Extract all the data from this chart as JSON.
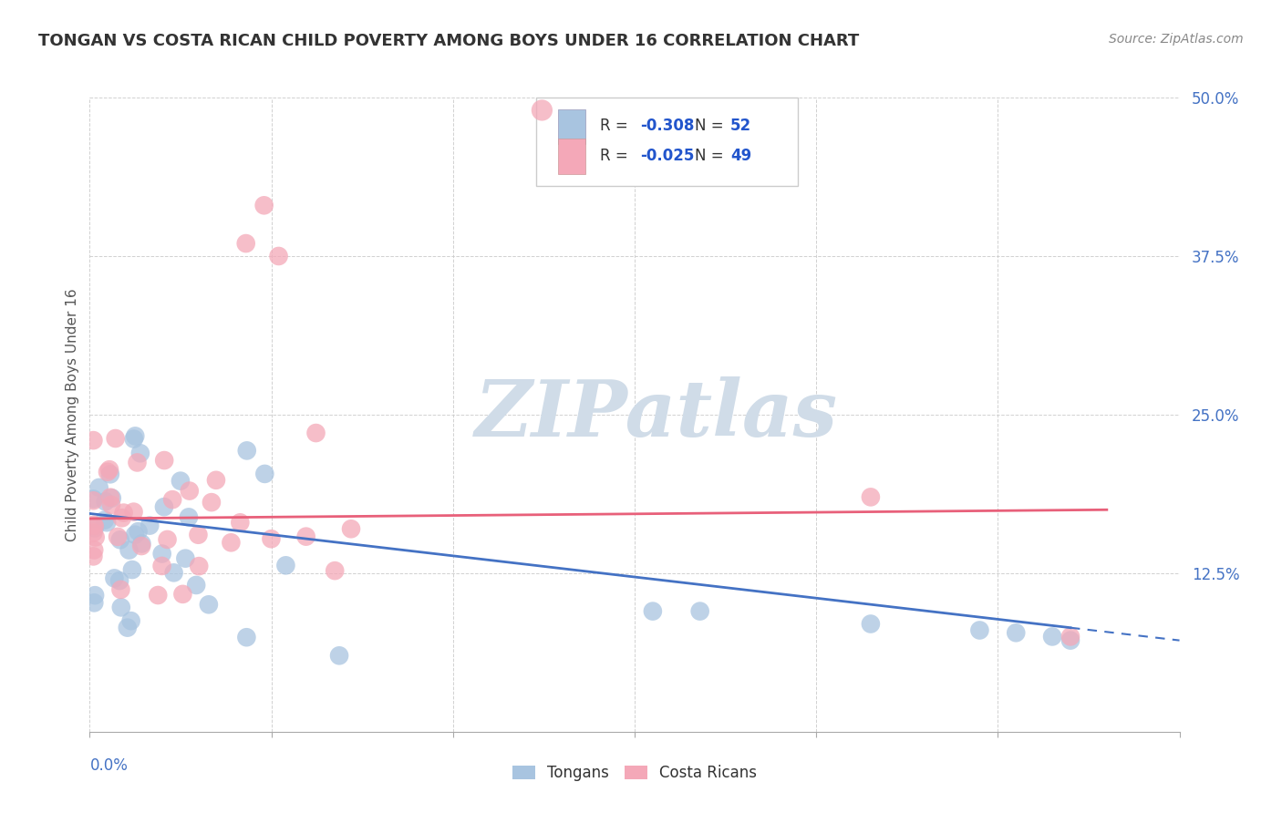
{
  "title": "TONGAN VS COSTA RICAN CHILD POVERTY AMONG BOYS UNDER 16 CORRELATION CHART",
  "source": "Source: ZipAtlas.com",
  "xlim": [
    0.0,
    0.3
  ],
  "ylim": [
    0.0,
    0.5
  ],
  "tongan_R": -0.308,
  "tongan_N": 52,
  "costarican_R": -0.025,
  "costarican_N": 49,
  "tongan_color": "#a8c4e0",
  "costarican_color": "#f4a8b8",
  "tongan_line_color": "#4472c4",
  "costarican_line_color": "#e8607a",
  "watermark_color": "#d0dce8",
  "background_color": "#ffffff",
  "grid_color": "#cccccc",
  "legend_R_color": "#2255cc",
  "tick_label_color": "#4472c4",
  "ylabel_color": "#555555",
  "title_color": "#333333",
  "source_color": "#888888"
}
